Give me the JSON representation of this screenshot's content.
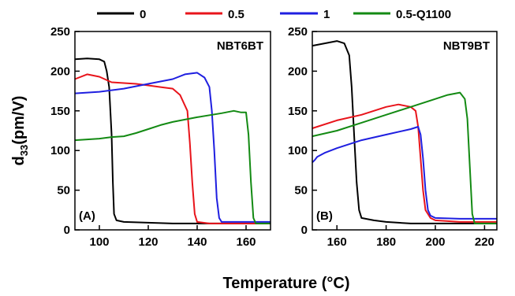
{
  "legend": [
    {
      "label": "0",
      "color": "#000000"
    },
    {
      "label": "0.5",
      "color": "#e8141b"
    },
    {
      "label": "1",
      "color": "#1f1fe0"
    },
    {
      "label": "0.5-Q1100",
      "color": "#138a13"
    }
  ],
  "axes": {
    "xlabel": "Temperature (°C)",
    "ylabel_main": "d",
    "ylabel_sub": "33",
    "ylabel_rest": "(pm/V)"
  },
  "chart_data": [
    {
      "type": "line",
      "title": "NBT6BT",
      "panel_label": "(A)",
      "xlabel": "Temperature (°C)",
      "ylabel": "d33(pm/V)",
      "xlim": [
        90,
        170
      ],
      "ylim": [
        0,
        250
      ],
      "xticks": [
        100,
        120,
        140,
        160
      ],
      "yticks": [
        0,
        50,
        100,
        150,
        200,
        250
      ],
      "grid": false,
      "legend_position": "top",
      "series": [
        {
          "name": "0",
          "color": "#000000",
          "x": [
            90,
            95,
            100,
            102,
            103,
            104,
            105,
            105.5,
            106,
            107,
            110,
            120,
            130,
            140,
            150,
            160,
            170
          ],
          "y": [
            215,
            216,
            215,
            212,
            200,
            180,
            120,
            60,
            20,
            12,
            10,
            9,
            8,
            8,
            8,
            8,
            8
          ]
        },
        {
          "name": "0.5",
          "color": "#e8141b",
          "x": [
            90,
            95,
            100,
            105,
            110,
            115,
            120,
            125,
            130,
            133,
            136,
            137,
            138,
            139,
            140,
            145,
            150,
            160,
            170
          ],
          "y": [
            190,
            196,
            193,
            186,
            185,
            184,
            182,
            180,
            178,
            170,
            150,
            110,
            60,
            20,
            10,
            8,
            8,
            8,
            8
          ]
        },
        {
          "name": "1",
          "color": "#1f1fe0",
          "x": [
            90,
            95,
            100,
            110,
            120,
            130,
            135,
            140,
            143,
            145,
            146,
            147,
            148,
            149,
            150,
            155,
            160,
            170
          ],
          "y": [
            172,
            173,
            174,
            178,
            184,
            190,
            196,
            198,
            192,
            180,
            150,
            100,
            40,
            15,
            10,
            10,
            10,
            10
          ]
        },
        {
          "name": "0.5-Q1100",
          "color": "#138a13",
          "x": [
            90,
            95,
            100,
            105,
            110,
            115,
            120,
            125,
            130,
            140,
            150,
            155,
            158,
            160,
            161,
            162,
            163,
            164,
            170
          ],
          "y": [
            113,
            114,
            115,
            117,
            118,
            122,
            127,
            132,
            136,
            142,
            147,
            150,
            148,
            148,
            120,
            60,
            15,
            8,
            8
          ]
        }
      ]
    },
    {
      "type": "line",
      "title": "NBT9BT",
      "panel_label": "(B)",
      "xlabel": "Temperature (°C)",
      "ylabel": "d33(pm/V)",
      "xlim": [
        150,
        225
      ],
      "ylim": [
        0,
        250
      ],
      "xticks": [
        160,
        180,
        200,
        220
      ],
      "yticks": [
        0,
        50,
        100,
        150,
        200,
        250
      ],
      "grid": false,
      "legend_position": "top",
      "series": [
        {
          "name": "0",
          "color": "#000000",
          "x": [
            150,
            155,
            160,
            163,
            165,
            166,
            167,
            168,
            169,
            170,
            175,
            180,
            190,
            200,
            210,
            225
          ],
          "y": [
            232,
            235,
            238,
            235,
            220,
            180,
            120,
            60,
            25,
            15,
            12,
            10,
            8,
            8,
            8,
            8
          ]
        },
        {
          "name": "0.5",
          "color": "#e8141b",
          "x": [
            150,
            160,
            170,
            175,
            180,
            185,
            190,
            192,
            193,
            194,
            195,
            196,
            198,
            200,
            210,
            225
          ],
          "y": [
            128,
            138,
            145,
            150,
            155,
            158,
            155,
            150,
            130,
            90,
            50,
            25,
            15,
            12,
            10,
            10
          ]
        },
        {
          "name": "1",
          "color": "#1f1fe0",
          "x": [
            150,
            151,
            152,
            155,
            160,
            170,
            180,
            190,
            193,
            194,
            195,
            196,
            197,
            198,
            200,
            210,
            225
          ],
          "y": [
            85,
            88,
            92,
            97,
            103,
            113,
            120,
            127,
            130,
            120,
            90,
            50,
            25,
            18,
            15,
            14,
            14
          ]
        },
        {
          "name": "0.5-Q1100",
          "color": "#138a13",
          "x": [
            150,
            160,
            170,
            180,
            190,
            200,
            205,
            210,
            212,
            213,
            214,
            215,
            216,
            217,
            225
          ],
          "y": [
            118,
            125,
            135,
            145,
            155,
            165,
            170,
            173,
            165,
            140,
            80,
            20,
            8,
            8,
            8
          ]
        }
      ]
    }
  ]
}
